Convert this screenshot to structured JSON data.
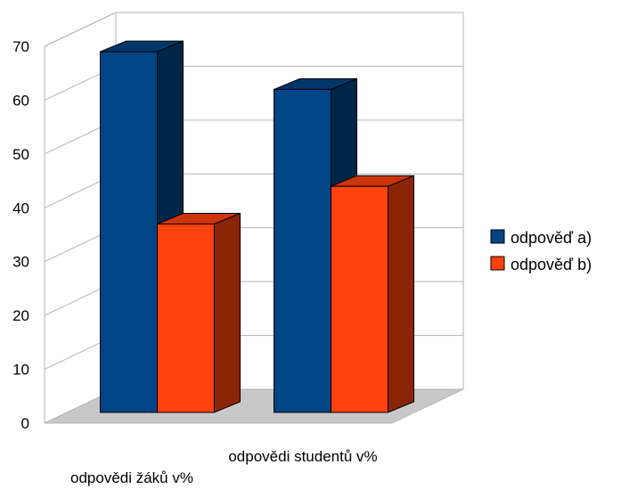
{
  "chart_data": {
    "type": "bar",
    "categories": [
      "odpovědi žáků v%",
      "odpovědi studentů v%"
    ],
    "series": [
      {
        "name": "odpověď a)",
        "values": [
          67,
          60
        ],
        "color": "#004586"
      },
      {
        "name": "odpověď b)",
        "values": [
          35,
          42
        ],
        "color": "#ff420e"
      }
    ],
    "yticks": [
      0,
      10,
      20,
      30,
      40,
      50,
      60,
      70
    ],
    "ylim": [
      0,
      70
    ],
    "grid": true,
    "three_d": true,
    "legend": "right"
  }
}
